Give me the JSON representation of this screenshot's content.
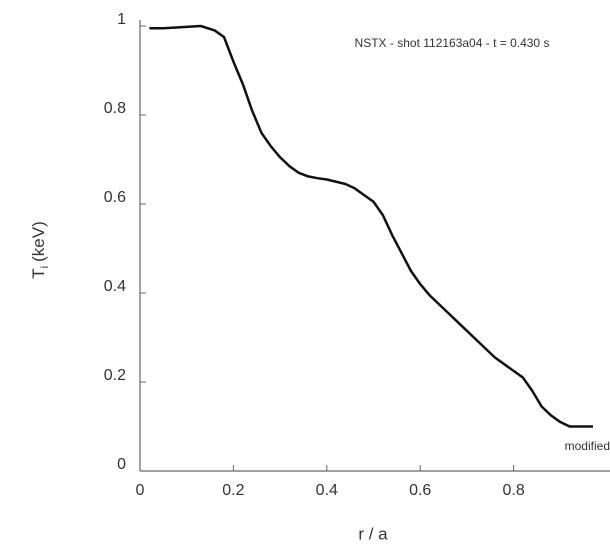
{
  "chart_data": {
    "type": "line",
    "annotations": [
      "NSTX - shot 112163a04 - t = 0.430 s",
      "modified"
    ],
    "x_label": "r / a",
    "y_label": {
      "text": "T",
      "subscript": "i",
      "unit": "(keV)"
    },
    "x": [
      0.02,
      0.05,
      0.1,
      0.13,
      0.16,
      0.18,
      0.2,
      0.22,
      0.24,
      0.26,
      0.28,
      0.3,
      0.32,
      0.34,
      0.36,
      0.38,
      0.4,
      0.42,
      0.44,
      0.46,
      0.48,
      0.5,
      0.52,
      0.54,
      0.56,
      0.58,
      0.6,
      0.62,
      0.64,
      0.66,
      0.68,
      0.7,
      0.72,
      0.74,
      0.76,
      0.78,
      0.8,
      0.82,
      0.84,
      0.86,
      0.88,
      0.9,
      0.92,
      0.97
    ],
    "series": [
      {
        "color": "#111111",
        "values": [
          0.995,
          0.995,
          0.998,
          1.0,
          0.99,
          0.975,
          0.92,
          0.87,
          0.81,
          0.76,
          0.73,
          0.705,
          0.685,
          0.67,
          0.662,
          0.658,
          0.655,
          0.65,
          0.645,
          0.635,
          0.62,
          0.605,
          0.575,
          0.53,
          0.49,
          0.45,
          0.42,
          0.395,
          0.375,
          0.355,
          0.335,
          0.315,
          0.295,
          0.275,
          0.255,
          0.24,
          0.225,
          0.21,
          0.18,
          0.145,
          0.125,
          0.11,
          0.1,
          0.1
        ]
      }
    ],
    "xlim": [
      0,
      1
    ],
    "ylim": [
      0,
      1
    ],
    "xticks": [
      0,
      0.2,
      0.4,
      0.6,
      0.8
    ],
    "yticks": [
      0,
      0.2,
      0.4,
      0.6,
      0.8,
      1
    ]
  }
}
